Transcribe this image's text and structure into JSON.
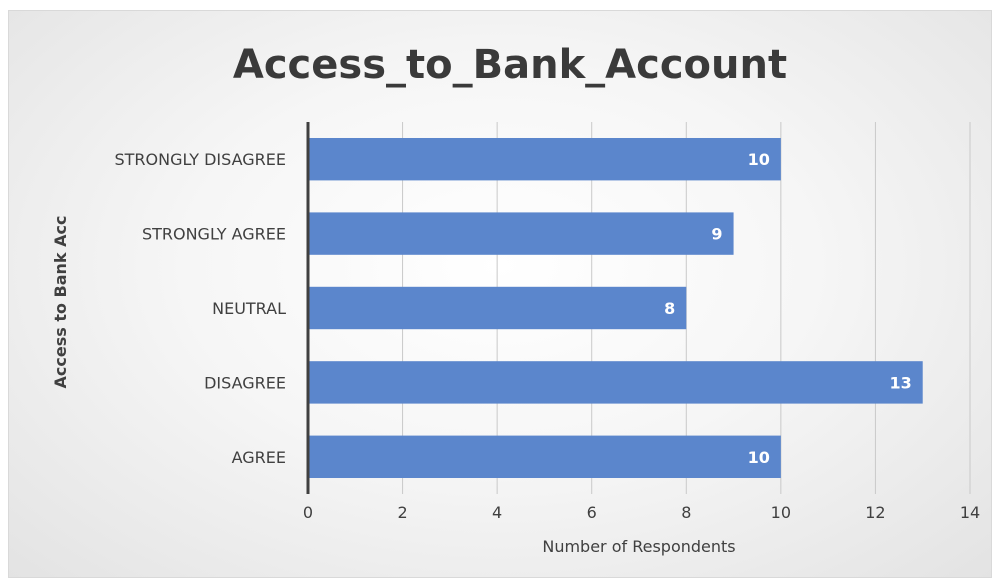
{
  "chart_data": {
    "type": "bar",
    "orientation": "horizontal",
    "title": "Access_to_Bank_Account",
    "xlabel": "Number of Respondents",
    "ylabel": "Access to Bank Acc",
    "categories": [
      "STRONGLY DISAGREE",
      "STRONGLY AGREE",
      "NEUTRAL",
      "DISAGREE",
      "AGREE"
    ],
    "values": [
      10,
      9,
      8,
      13,
      10
    ],
    "xlim": [
      0,
      14
    ],
    "xticks": [
      "0",
      "2",
      "4",
      "6",
      "8",
      "10",
      "12",
      "14"
    ],
    "grid": true,
    "legend": "none",
    "bar_color": "#5b86cc",
    "data_labels": true
  }
}
